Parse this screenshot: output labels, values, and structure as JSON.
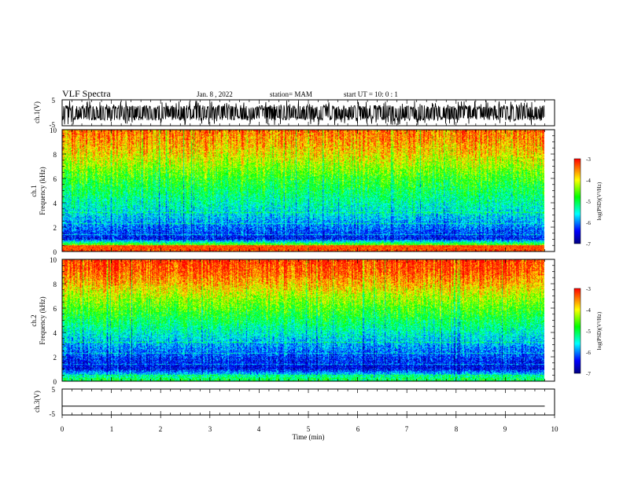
{
  "header": {
    "title": "VLF Spectra",
    "date": "Jan. 8 , 2022",
    "station": "station= MAM",
    "start_ut": "start UT = 10: 0 : 1"
  },
  "panels": {
    "ch1_wave": {
      "ylabel": "ch.1(V)",
      "ytick_labels": [
        "5",
        "-5"
      ]
    },
    "ch1_spec": {
      "ylabel_line1": "ch.1",
      "ylabel_line2": "Frequency (kHz)",
      "ytick_labels": [
        "10",
        "8",
        "6",
        "4",
        "2",
        "0"
      ]
    },
    "ch2_spec": {
      "ylabel_line1": "ch.2",
      "ylabel_line2": "Frequency (kHz)",
      "ytick_labels": [
        "10",
        "8",
        "6",
        "4",
        "2",
        "0"
      ]
    },
    "ch3_wave": {
      "ylabel": "ch.3(V)",
      "ytick_labels": [
        "5",
        "-5"
      ]
    }
  },
  "xaxis": {
    "label": "Time (min)",
    "tick_labels": [
      "0",
      "1",
      "2",
      "3",
      "4",
      "5",
      "6",
      "7",
      "8",
      "9",
      "10"
    ]
  },
  "colorbars": [
    {
      "label": "log(PSD)(V²/Hz)",
      "tick_labels": [
        "-3",
        "-4",
        "-5",
        "-6",
        "-7"
      ]
    },
    {
      "label": "log(PSD)(V²/Hz)",
      "tick_labels": [
        "-3",
        "-4",
        "-5",
        "-6",
        "-7"
      ]
    }
  ],
  "colors": {
    "colormap": [
      "#000080",
      "#0000ff",
      "#00ffff",
      "#00ff00",
      "#ffff00",
      "#ff0000"
    ],
    "axis": "#000000"
  },
  "chart_data": [
    {
      "type": "line",
      "title": "",
      "ylabel": "ch.1(V)",
      "xlabel": "",
      "xlim": [
        0,
        10
      ],
      "ylim": [
        -5,
        5
      ],
      "description_values": {
        "baseline": 0,
        "min_approx": -5,
        "max_approx": 5
      }
    },
    {
      "type": "heatmap",
      "ylabel": "Frequency (kHz)",
      "xlim": [
        0,
        10
      ],
      "ylim": [
        0,
        10
      ],
      "zlim": [
        -7,
        -3
      ],
      "zlabel": "log(PSD)(V²/Hz)",
      "approx_profile": {
        "freq_kHz": [
          0.2,
          1,
          2,
          3,
          4,
          5,
          6,
          7,
          8,
          9,
          10
        ],
        "log_psd": [
          -3.2,
          -6.4,
          -6.0,
          -5.6,
          -5.3,
          -5.0,
          -4.7,
          -4.3,
          -3.9,
          -3.6,
          -3.4
        ]
      }
    },
    {
      "type": "heatmap",
      "ylabel": "Frequency (kHz)",
      "xlim": [
        0,
        10
      ],
      "ylim": [
        0,
        10
      ],
      "zlim": [
        -7,
        -3
      ],
      "zlabel": "log(PSD)(V²/Hz)",
      "approx_profile": {
        "freq_kHz": [
          0.2,
          1,
          2,
          3,
          4,
          5,
          6,
          7,
          8,
          9,
          10
        ],
        "log_psd": [
          -5.0,
          -6.5,
          -6.2,
          -5.8,
          -5.4,
          -5.0,
          -4.6,
          -4.2,
          -3.7,
          -3.3,
          -3.1
        ]
      }
    },
    {
      "type": "line",
      "ylabel": "ch.3(V)",
      "xlabel": "Time (min)",
      "xlim": [
        0,
        10
      ],
      "ylim": [
        -5,
        5
      ],
      "values": {
        "x": [
          0,
          9.8
        ],
        "y": [
          -1.6,
          -1.6
        ]
      }
    }
  ]
}
